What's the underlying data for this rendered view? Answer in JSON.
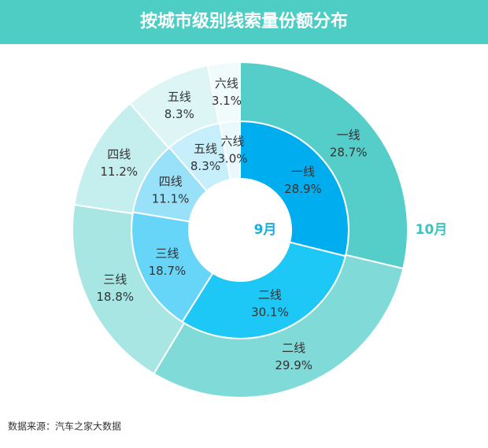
{
  "chart_data": {
    "type": "donut",
    "title": "按城市级别线索量份额分布",
    "categories": [
      "一线",
      "二线",
      "三线",
      "四线",
      "五线",
      "六线"
    ],
    "series": [
      {
        "name": "9月",
        "color": "#1aaee0",
        "values": [
          28.9,
          30.1,
          18.7,
          11.1,
          8.3,
          3.0
        ],
        "value_labels": [
          "28.9%",
          "30.1%",
          "18.7%",
          "11.1%",
          "8.3%",
          "3.0%"
        ],
        "colors": [
          "#00aeef",
          "#1ec8f6",
          "#66d5f8",
          "#99e1f9",
          "#c6eefb",
          "#e8f8fd"
        ]
      },
      {
        "name": "10月",
        "color": "#3cc3c0",
        "values": [
          28.7,
          29.9,
          18.8,
          11.2,
          8.3,
          3.1
        ],
        "value_labels": [
          "28.7%",
          "29.9%",
          "18.8%",
          "11.2%",
          "8.3%",
          "3.1%"
        ],
        "colors": [
          "#55cdc9",
          "#80dad7",
          "#a8e6e4",
          "#c5efee",
          "#ddf6f5",
          "#f0fbfb"
        ]
      }
    ],
    "source": "数据来源：汽车之家大数据"
  }
}
